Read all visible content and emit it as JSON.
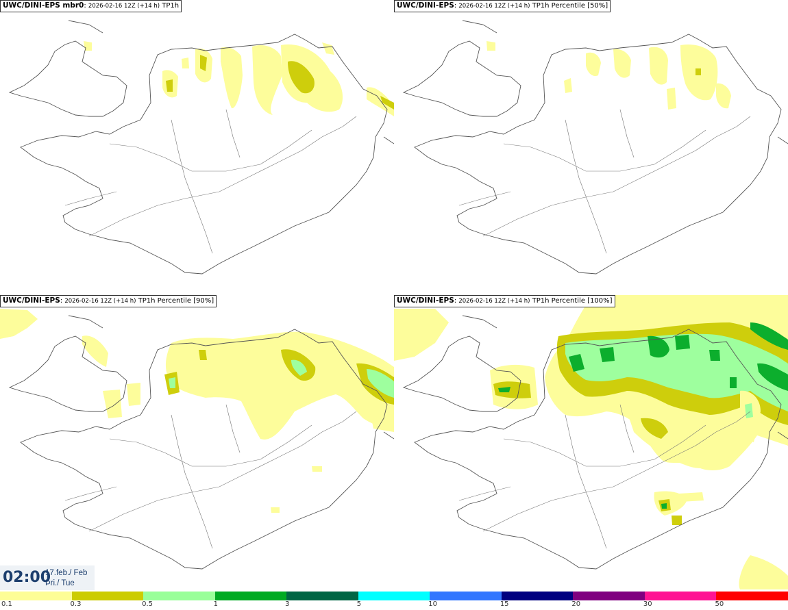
{
  "panels": [
    {
      "model": "UWC/DINI-EPS mbr0",
      "run": "2026-02-16 12Z (+14 h)",
      "field": "TP1h"
    },
    {
      "model": "UWC/DINI-EPS",
      "run": "2026-02-16 12Z (+14 h)",
      "field": "TP1h Percentile [50%]"
    },
    {
      "model": "UWC/DINI-EPS",
      "run": "2026-02-16 12Z (+14 h)",
      "field": "TP1h Percentile [90%]"
    },
    {
      "model": "UWC/DINI-EPS",
      "run": "2026-02-16 12Z (+14 h)",
      "field": "TP1h Percentile [100%]"
    }
  ],
  "valid_time": {
    "clock": "02:00",
    "date_line1": "17.feb./ Feb",
    "date_line2": "Þri./ Tue"
  },
  "legend": {
    "labels": [
      "0.1",
      "0.3",
      "0.5",
      "1",
      "3",
      "5",
      "10",
      "15",
      "20",
      "30",
      "50"
    ],
    "colors": [
      "#fdfd96",
      "#cccc00",
      "#99ff99",
      "#00aa22",
      "#006644",
      "#00ffff",
      "#3377ff",
      "#000080",
      "#800080",
      "#ff1493",
      "#ff0000"
    ]
  }
}
